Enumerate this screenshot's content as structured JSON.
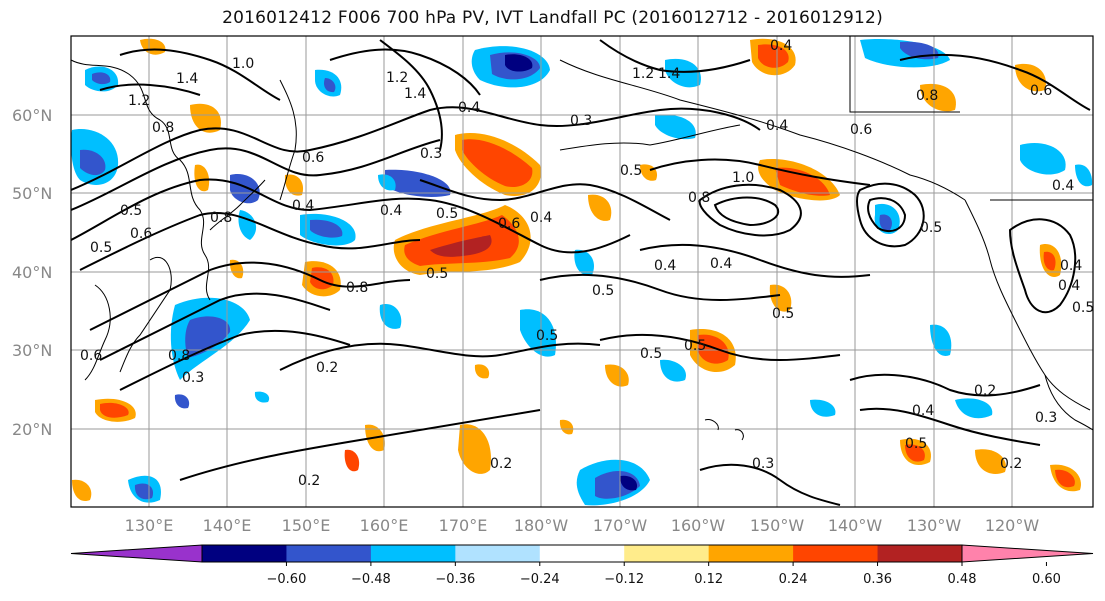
{
  "title": "2016012412 F006 700 hPa PV, IVT Landfall PC (2016012712 - 2016012912)",
  "lat_labels": [
    "60°N",
    "50°N",
    "40°N",
    "30°N",
    "20°N"
  ],
  "lon_labels": [
    "130°E",
    "140°E",
    "150°E",
    "160°E",
    "170°E",
    "180°W",
    "170°W",
    "160°W",
    "150°W",
    "140°W",
    "130°W",
    "120°W"
  ],
  "colorbar": {
    "ticks": [
      "−0.60",
      "−0.48",
      "−0.36",
      "−0.24",
      "−0.12",
      "0.12",
      "0.24",
      "0.36",
      "0.48",
      "0.60"
    ],
    "colors": [
      "#9932CC",
      "#000080",
      "#3355CC",
      "#00BFFF",
      "#B0E2FF",
      "#FFFFFF",
      "#FFEC8B",
      "#FFA500",
      "#FF4500",
      "#B22222",
      "#FF82AB"
    ]
  },
  "contour_labels": [
    "1.4",
    "1.2",
    "1.0",
    "0.8",
    "1.2",
    "1.4",
    "0.4",
    "0.3",
    "0.6",
    "0.5",
    "0.4",
    "0.5",
    "0.6",
    "0.4",
    "0.8",
    "0.5",
    "0.6",
    "0.8",
    "0.8",
    "0.6",
    "0.5",
    "0.4",
    "0.8",
    "0.5",
    "0.4",
    "0.5",
    "0.2",
    "0.3",
    "0.5",
    "0.5",
    "0.5",
    "0.3",
    "0.5",
    "0.4",
    "0.3",
    "0.2",
    "0.2",
    "0.5",
    "0.4",
    "0.2",
    "1.0",
    "0.6",
    "0.4",
    "1.2",
    "1.4",
    "0.4",
    "0.6",
    "0.8",
    "0.3",
    "0.4",
    "0.4",
    "0.5",
    "0.2",
    "0.4",
    "0.5"
  ]
}
